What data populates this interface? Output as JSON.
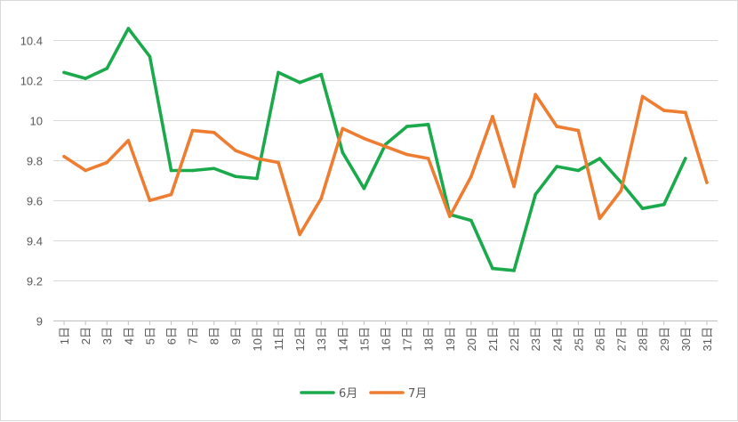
{
  "chart_data": {
    "type": "line",
    "categories": [
      "1日",
      "2日",
      "3日",
      "4日",
      "5日",
      "6日",
      "7日",
      "8日",
      "9日",
      "10日",
      "11日",
      "12日",
      "13日",
      "14日",
      "15日",
      "16日",
      "17日",
      "18日",
      "19日",
      "20日",
      "21日",
      "22日",
      "23日",
      "24日",
      "25日",
      "26日",
      "27日",
      "28日",
      "29日",
      "30日",
      "31日"
    ],
    "y_ticks": [
      "9",
      "9.2",
      "9.4",
      "9.6",
      "9.8",
      "10",
      "10.2",
      "10.4"
    ],
    "ylim": [
      9,
      10.5
    ],
    "grid": true,
    "legend_position": "bottom",
    "series": [
      {
        "name": "6月",
        "color": "#1aaa4b",
        "values": [
          10.24,
          10.21,
          10.26,
          10.46,
          10.32,
          9.75,
          9.75,
          9.76,
          9.72,
          9.71,
          10.24,
          10.19,
          10.23,
          9.84,
          9.66,
          9.88,
          9.97,
          9.98,
          9.53,
          9.5,
          9.26,
          9.25,
          9.63,
          9.77,
          9.75,
          9.81,
          9.69,
          9.56,
          9.58,
          9.81,
          null
        ]
      },
      {
        "name": "7月",
        "color": "#ee7d31",
        "values": [
          9.82,
          9.75,
          9.79,
          9.9,
          9.6,
          9.63,
          9.95,
          9.94,
          9.85,
          9.81,
          9.79,
          9.43,
          9.61,
          9.96,
          9.91,
          9.87,
          9.83,
          9.81,
          9.52,
          9.72,
          10.02,
          9.67,
          10.13,
          9.97,
          9.95,
          9.51,
          9.65,
          10.12,
          10.05,
          10.04,
          9.69
        ]
      }
    ]
  }
}
